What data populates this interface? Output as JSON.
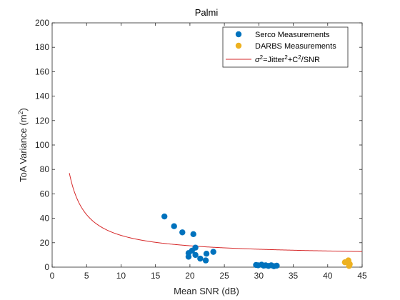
{
  "chart_data": {
    "type": "scatter",
    "title": "Palmi",
    "xlabel": "Mean SNR (dB)",
    "ylabel_main": "ToA Variance (m",
    "ylabel_sup": "2",
    "ylabel_end": ")",
    "xlim": [
      0,
      45
    ],
    "ylim": [
      0,
      200
    ],
    "x_ticks": [
      0,
      5,
      10,
      15,
      20,
      25,
      30,
      35,
      40,
      45
    ],
    "y_ticks": [
      0,
      20,
      40,
      60,
      80,
      100,
      120,
      140,
      160,
      180,
      200
    ],
    "legend_position": "top-right",
    "series": [
      {
        "name": "Serco Measurements",
        "kind": "scatter",
        "color": "#0072BD",
        "points": [
          [
            16.3,
            41.5
          ],
          [
            17.7,
            33.5
          ],
          [
            18.9,
            28.5
          ],
          [
            20.5,
            27
          ],
          [
            20.8,
            16
          ],
          [
            20.3,
            13.5
          ],
          [
            19.8,
            11.5
          ],
          [
            19.8,
            8.5
          ],
          [
            20.8,
            10
          ],
          [
            21.5,
            7
          ],
          [
            22.3,
            5.5
          ],
          [
            22.4,
            11
          ],
          [
            23.4,
            12.5
          ],
          [
            29.6,
            1.8
          ],
          [
            29.9,
            1.5
          ],
          [
            30.4,
            2
          ],
          [
            30.7,
            1.2
          ],
          [
            31.0,
            1.5
          ],
          [
            31.4,
            1.0
          ],
          [
            31.8,
            1.5
          ],
          [
            32.2,
            0.8
          ],
          [
            32.6,
            1.2
          ]
        ]
      },
      {
        "name": "DARBS Measurements",
        "kind": "scatter",
        "color": "#EDB120",
        "points": [
          [
            42.5,
            4
          ],
          [
            43.0,
            5.5
          ],
          [
            43.2,
            2.5
          ],
          [
            43.1,
            1
          ]
        ]
      },
      {
        "name_parts": [
          "σ",
          "2",
          "=Jitter",
          "2",
          "+C",
          "2",
          "/SNR"
        ],
        "kind": "curve",
        "color": "#D62728",
        "jitter": 3.0,
        "c_squared": 170,
        "x_range": [
          2.5,
          45
        ]
      }
    ]
  }
}
